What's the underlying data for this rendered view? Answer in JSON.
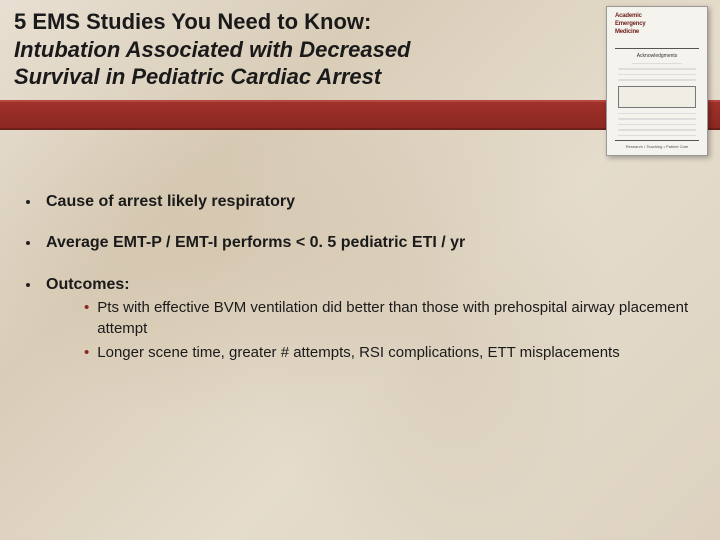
{
  "colors": {
    "red_band_top": "#a0302a",
    "red_band_bottom": "#8c2822",
    "bullet_sub": "#8c2822",
    "text": "#1a1a1a",
    "bg_warm_light": "#e8dfd2",
    "bg_warm_dark": "#d9cdb8"
  },
  "title": {
    "line1": "5 EMS Studies You Need to Know:",
    "line2a": "Intubation Associated with Decreased",
    "line2b": "Survival in Pediatric Cardiac Arrest"
  },
  "journal_thumb": {
    "name1": "Academic",
    "name2": "Emergency",
    "name3": "Medicine",
    "section": "Acknowledgments",
    "box_label": "Class Investigation",
    "footer": "Research • Teaching • Patient Care"
  },
  "bullets": [
    {
      "text": "Cause of arrest likely respiratory",
      "sub": []
    },
    {
      "text": "Average EMT-P / EMT-I performs < 0. 5 pediatric ETI / yr",
      "sub": []
    },
    {
      "text": "Outcomes:",
      "sub": [
        "Pts with effective BVM ventilation did better than those with prehospital airway placement attempt",
        "Longer scene time, greater # attempts, RSI complications, ETT misplacements"
      ]
    }
  ]
}
